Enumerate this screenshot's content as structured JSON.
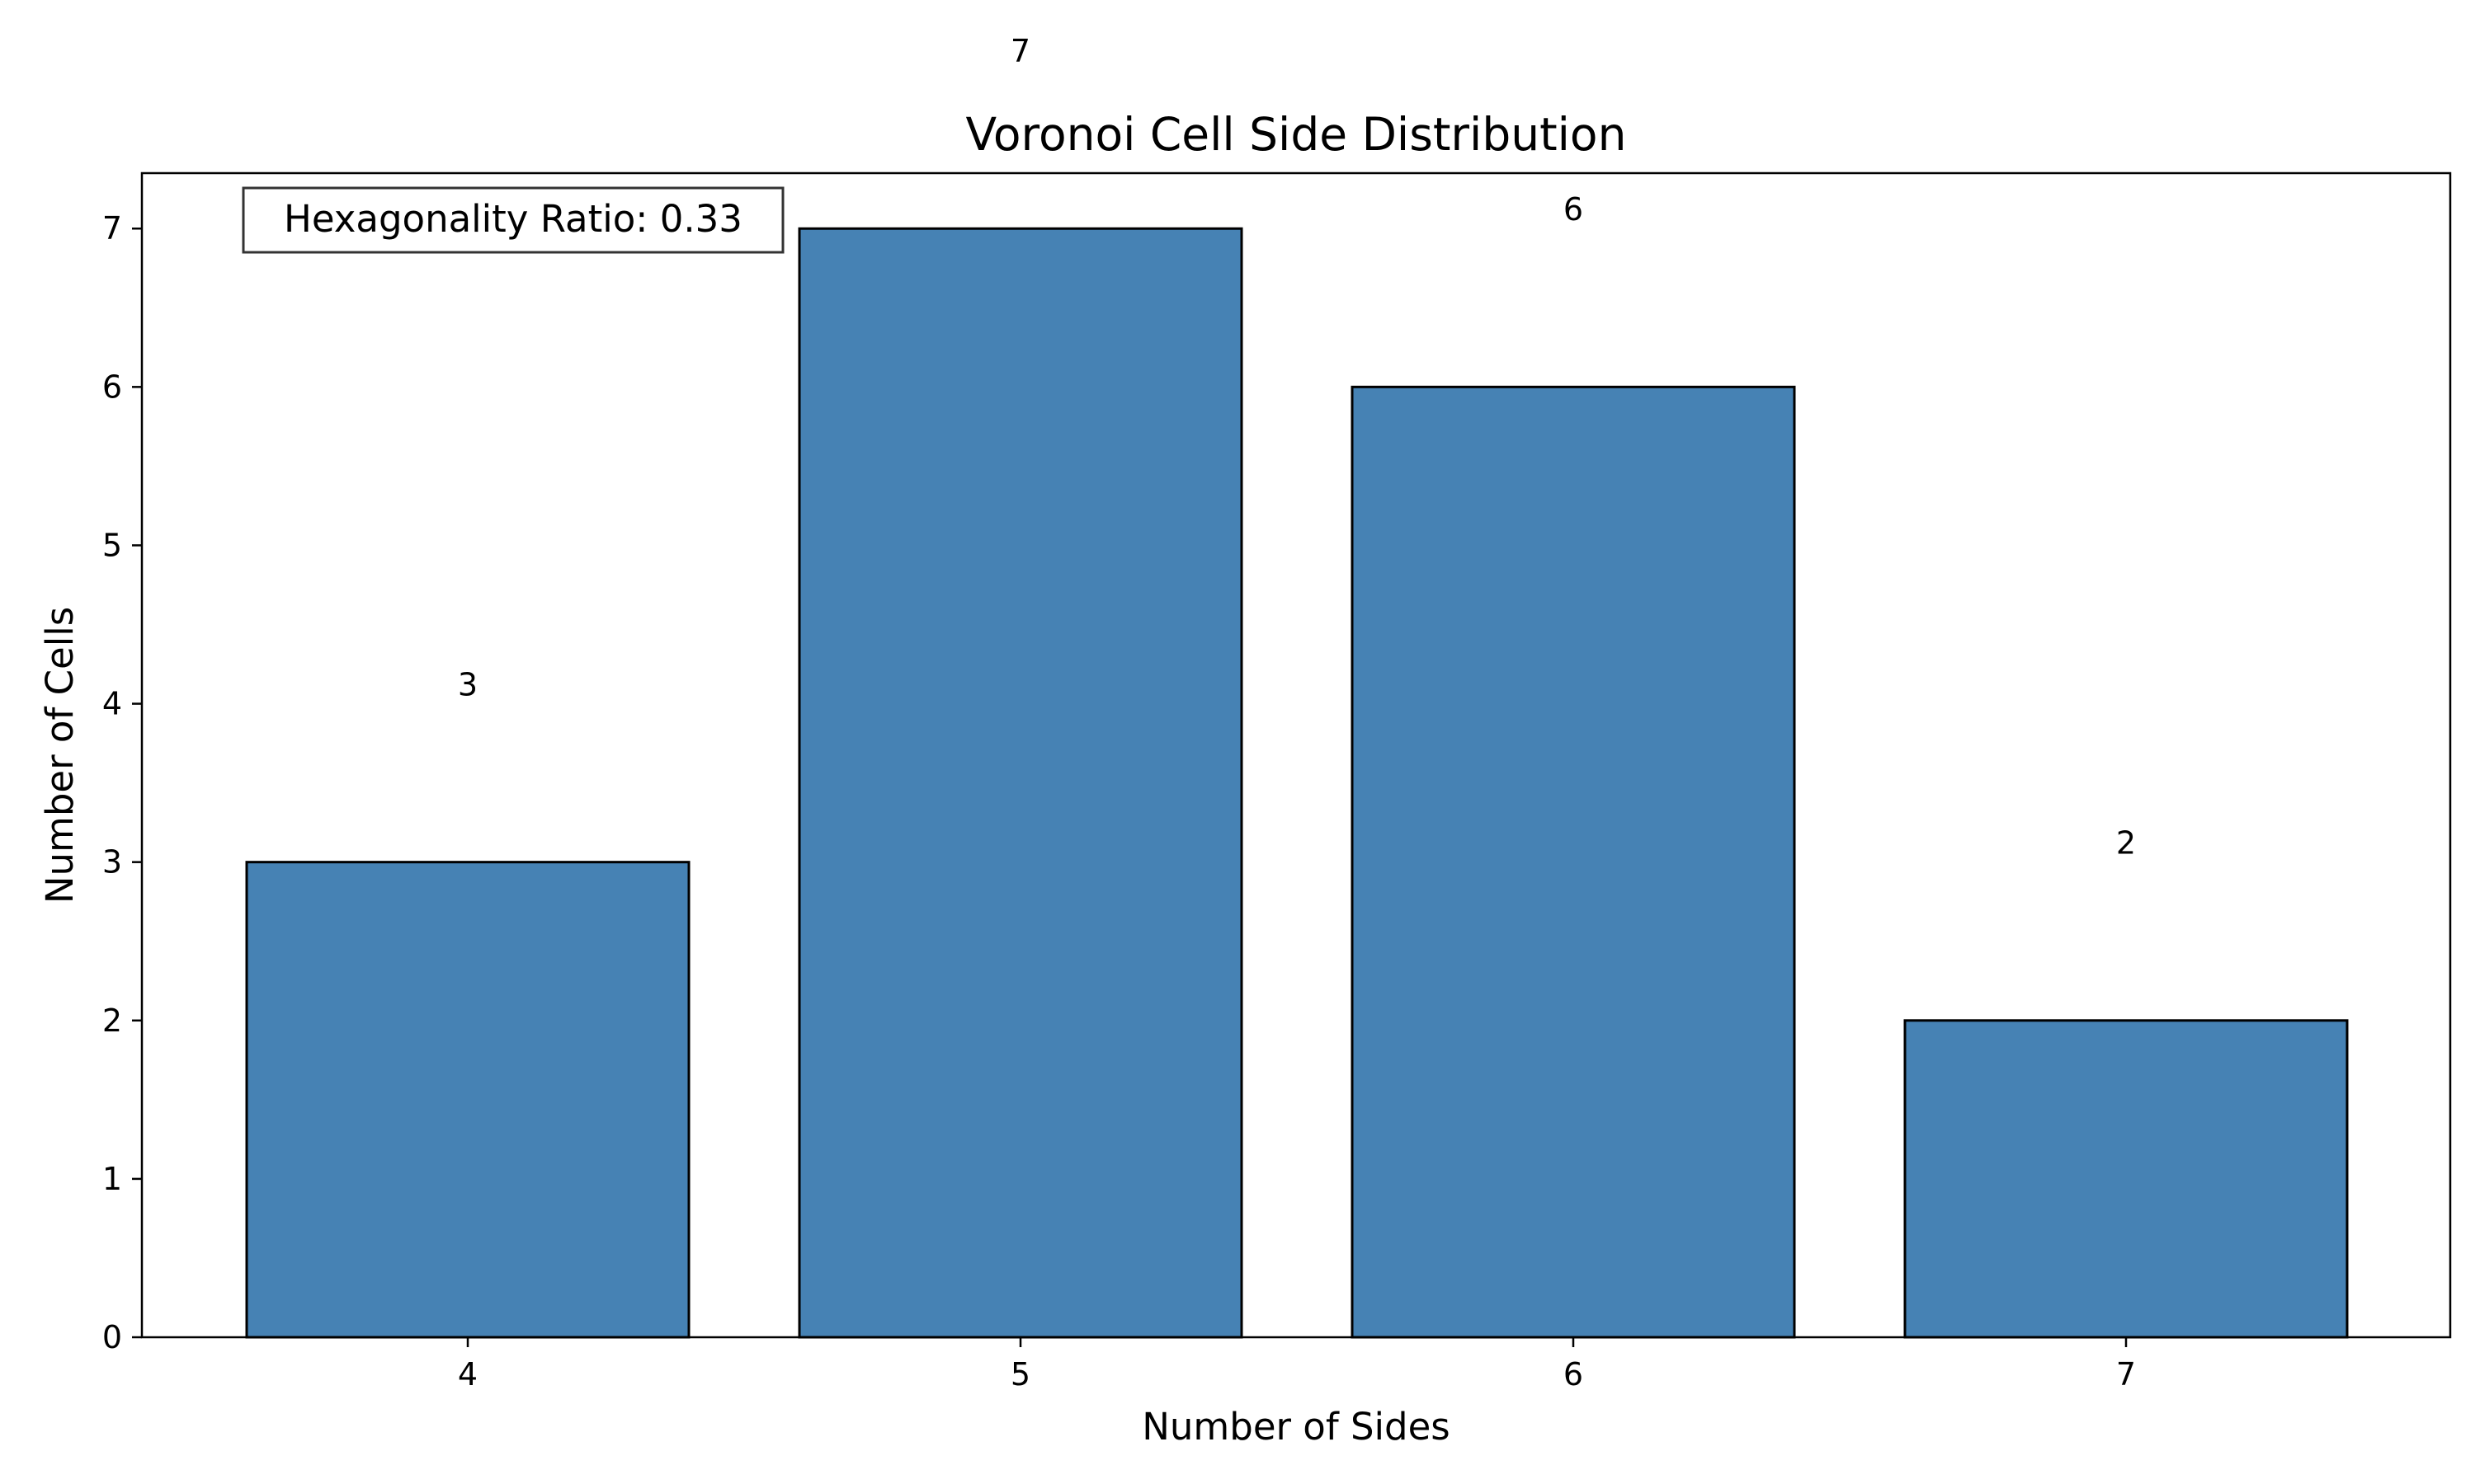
{
  "chart_data": {
    "type": "bar",
    "title": "Voronoi Cell Side Distribution",
    "xlabel": "Number of Sides",
    "ylabel": "Number of Cells",
    "categories": [
      "4",
      "5",
      "6",
      "7"
    ],
    "values": [
      3,
      7,
      6,
      2
    ],
    "bar_labels": [
      "3",
      "7",
      "6",
      "2"
    ],
    "y_ticks": [
      "0",
      "1",
      "2",
      "3",
      "4",
      "5",
      "6",
      "7"
    ],
    "ylim": [
      0,
      7.35
    ],
    "grid": false,
    "legend": "none",
    "bar_color": "#4682b4",
    "bar_edge_color": "#000000",
    "annotation": {
      "text": "Hexagonality Ratio: 0.33",
      "placement": "top-left"
    }
  }
}
